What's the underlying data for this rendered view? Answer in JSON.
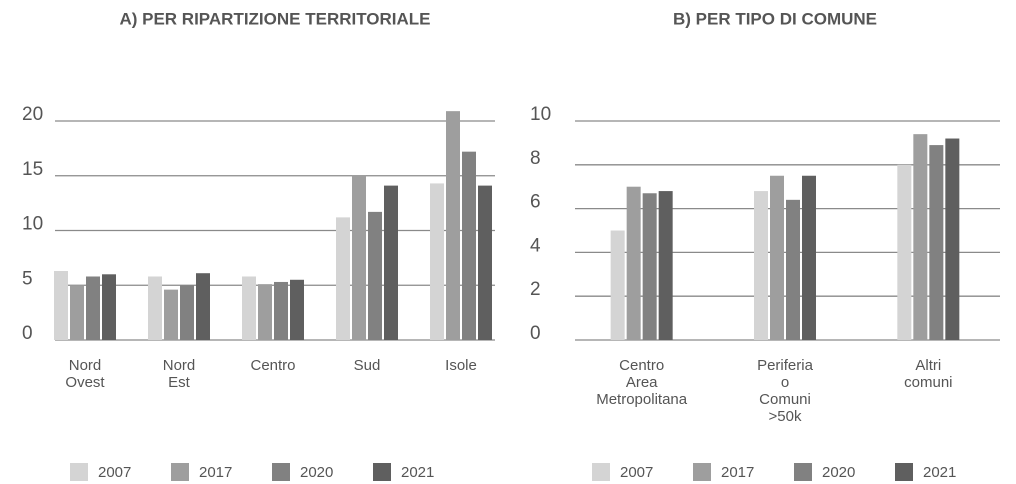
{
  "chart_data": [
    {
      "type": "bar",
      "title": "A) PER RIPARTIZIONE TERRITORIALE",
      "categories": [
        [
          "Nord",
          "Ovest"
        ],
        [
          "Nord",
          "Est"
        ],
        [
          "Centro"
        ],
        [
          "Sud"
        ],
        [
          "Isole"
        ]
      ],
      "series": [
        {
          "name": "2007",
          "color": "#d4d4d4",
          "values": [
            6.3,
            5.8,
            5.8,
            11.2,
            14.3
          ]
        },
        {
          "name": "2017",
          "color": "#9e9e9e",
          "values": [
            5.0,
            4.6,
            5.1,
            15.0,
            20.9
          ]
        },
        {
          "name": "2020",
          "color": "#818181",
          "values": [
            5.8,
            5.0,
            5.3,
            11.7,
            17.2
          ]
        },
        {
          "name": "2021",
          "color": "#5f5f5f",
          "values": [
            6.0,
            6.1,
            5.5,
            14.1,
            14.1
          ]
        }
      ],
      "ylim": [
        0,
        20
      ],
      "yticks": [
        0,
        5,
        10,
        15,
        20
      ],
      "grid": true
    },
    {
      "type": "bar",
      "title": "B) PER TIPO DI COMUNE",
      "categories": [
        [
          "Centro",
          "Area",
          "Metropolitana"
        ],
        [
          "Periferia",
          "o",
          "Comuni",
          ">50k"
        ],
        [
          "Altri",
          "comuni"
        ]
      ],
      "series": [
        {
          "name": "2007",
          "color": "#d4d4d4",
          "values": [
            5.0,
            6.8,
            8.0
          ]
        },
        {
          "name": "2017",
          "color": "#9e9e9e",
          "values": [
            7.0,
            7.5,
            9.4
          ]
        },
        {
          "name": "2020",
          "color": "#818181",
          "values": [
            6.7,
            6.4,
            8.9
          ]
        },
        {
          "name": "2021",
          "color": "#5f5f5f",
          "values": [
            6.8,
            7.5,
            9.2
          ]
        }
      ],
      "ylim": [
        0,
        10
      ],
      "yticks": [
        0,
        2,
        4,
        6,
        8,
        10
      ],
      "grid": true
    }
  ]
}
